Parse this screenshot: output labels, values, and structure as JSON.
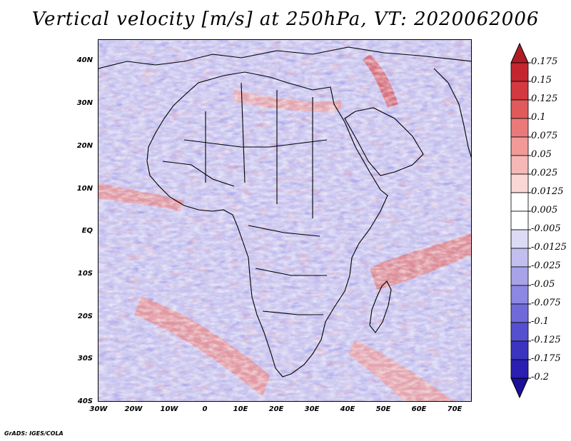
{
  "title": "Vertical velocity [m/s] at 250hPa, VT: 2020062006",
  "footer": "GrADS: IGES/COLA",
  "map": {
    "projection": "lat-lon",
    "lon_range": [
      -30,
      75
    ],
    "lat_range": [
      -40,
      45
    ],
    "lat_ticks": [
      "40N",
      "30N",
      "20N",
      "10N",
      "EQ",
      "10S",
      "20S",
      "30S",
      "40S"
    ],
    "lon_ticks": [
      "30W",
      "20W",
      "10W",
      "0",
      "10E",
      "20E",
      "30E",
      "40E",
      "50E",
      "60E",
      "70E"
    ],
    "field": "vertical velocity",
    "level": "250hPa",
    "units": "m/s",
    "colors": {
      "positive": "#d9434b",
      "negative": "#5a56d6",
      "neutral": "#ffffff",
      "border_lines": "#000000"
    }
  },
  "colorbar": {
    "labels": [
      "0.175",
      "0.15",
      "0.125",
      "0.1",
      "0.075",
      "0.05",
      "0.025",
      "0.0125",
      "0.005",
      "-0.005",
      "-0.0125",
      "-0.025",
      "-0.05",
      "-0.075",
      "-0.1",
      "-0.125",
      "-0.175",
      "-0.2"
    ],
    "colors": [
      "#b01c26",
      "#c3262f",
      "#d33a40",
      "#e05a5c",
      "#ea7a7a",
      "#f29a98",
      "#f6b8b6",
      "#fad6d4",
      "#ffffff",
      "#ffffff",
      "#dcdaf5",
      "#c2bfef",
      "#a7a3e8",
      "#8c87e1",
      "#706ad9",
      "#5650cf",
      "#3c34c0",
      "#2a1fb0",
      "#1c0f9a"
    ]
  }
}
